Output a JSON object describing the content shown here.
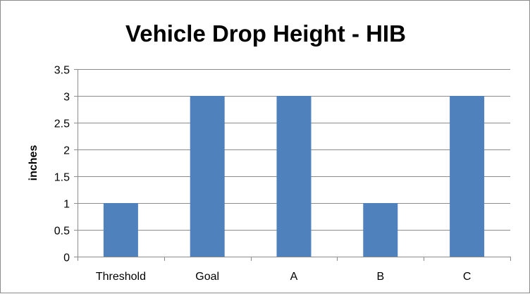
{
  "chart_data": {
    "type": "bar",
    "title": "Vehicle Drop Height - HIB",
    "xlabel": "",
    "ylabel": "inches",
    "categories": [
      "Threshold",
      "Goal",
      "A",
      "B",
      "C"
    ],
    "values": [
      1,
      3,
      3,
      1,
      3
    ],
    "ylim": [
      0,
      3.5
    ],
    "yticks": [
      "0",
      "0.5",
      "1",
      "1.5",
      "2",
      "2.5",
      "3",
      "3.5"
    ],
    "grid": true,
    "legend": "none",
    "bar_color": "#4f81bd",
    "grid_color": "#8c8c8c"
  }
}
